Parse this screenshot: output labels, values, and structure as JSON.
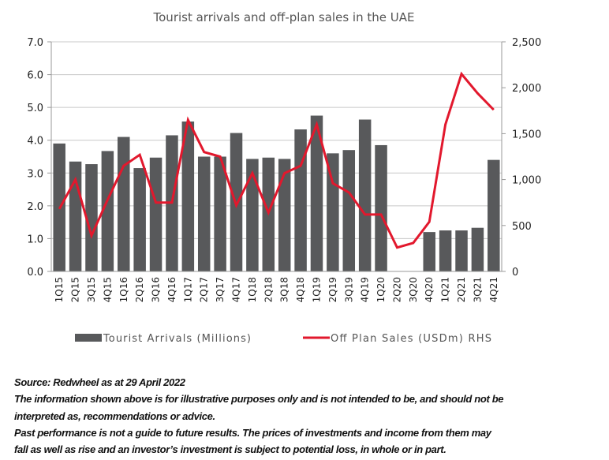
{
  "chart_data": {
    "type": "bar+line",
    "title": "Tourist arrivals and off-plan sales in the UAE",
    "categories": [
      "1Q15",
      "2Q15",
      "3Q15",
      "4Q15",
      "1Q16",
      "2Q16",
      "3Q16",
      "4Q16",
      "1Q17",
      "2Q17",
      "3Q17",
      "4Q17",
      "1Q18",
      "2Q18",
      "3Q18",
      "4Q18",
      "1Q19",
      "2Q19",
      "3Q19",
      "4Q19",
      "1Q20",
      "2Q20",
      "3Q20",
      "4Q20",
      "1Q21",
      "2Q21",
      "3Q21",
      "4Q21"
    ],
    "series": [
      {
        "name": "Tourist Arrivals (Millions)",
        "type": "bar",
        "axis": "left",
        "color": "#58595b",
        "values": [
          3.9,
          3.35,
          3.27,
          3.67,
          4.1,
          3.15,
          3.47,
          4.15,
          4.57,
          3.5,
          3.5,
          4.22,
          3.43,
          3.47,
          3.43,
          4.33,
          4.75,
          3.6,
          3.7,
          4.63,
          3.85,
          0,
          0,
          1.2,
          1.25,
          1.25,
          1.33,
          3.4
        ]
      },
      {
        "name": "Off Plan Sales (USDm) RHS",
        "type": "line",
        "axis": "right",
        "color": "#e2182d",
        "values": [
          680,
          1000,
          390,
          780,
          1150,
          1270,
          750,
          750,
          1650,
          1300,
          1250,
          720,
          1070,
          640,
          1070,
          1150,
          1600,
          960,
          860,
          620,
          620,
          260,
          310,
          540,
          1600,
          2150,
          1940,
          1760
        ]
      }
    ],
    "y_left": {
      "range": [
        0,
        7
      ],
      "ticks": [
        "0.0",
        "1.0",
        "2.0",
        "3.0",
        "4.0",
        "5.0",
        "6.0",
        "7.0"
      ]
    },
    "y_right": {
      "range": [
        0,
        2500
      ],
      "ticks": [
        "0",
        "500",
        "1,000",
        "1,500",
        "2,000",
        "2,500"
      ]
    },
    "grid": true,
    "legend_placement": "bottom"
  },
  "notes": [
    "Source: Redwheel as at 29 April 2022",
    "The information shown above is for illustrative purposes only and is not intended to be, and should not be",
    "interpreted as, recommendations or advice.",
    "Past performance is not a guide to future results. The prices of investments and income from them may",
    "fall as well as rise and an investor’s investment is subject to potential loss, in whole or in part."
  ]
}
